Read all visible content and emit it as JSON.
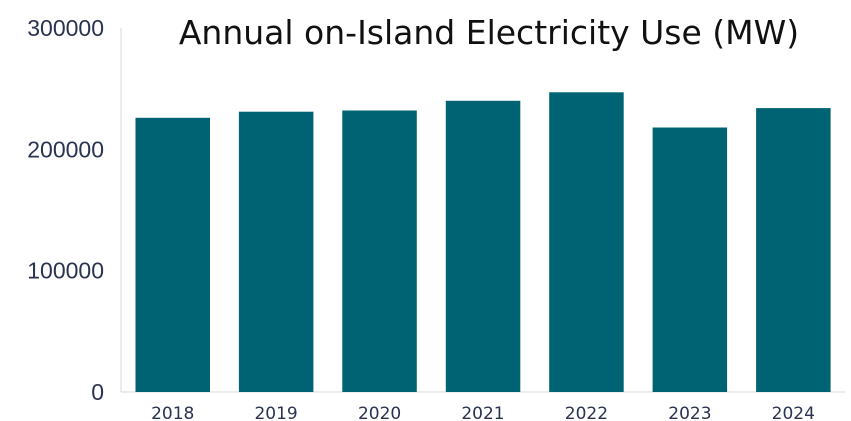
{
  "chart_data": {
    "type": "bar",
    "title": "Annual on-Island Electricity Use (MW)",
    "categories": [
      "2018",
      "2019",
      "2020",
      "2021",
      "2022",
      "2023",
      "2024"
    ],
    "values": [
      226000,
      231000,
      232000,
      240000,
      247000,
      218000,
      234000
    ],
    "ylim": [
      0,
      300000
    ],
    "yticks": [
      "0",
      "100000",
      "200000",
      "300000"
    ],
    "xlabel": "",
    "ylabel": "",
    "grid": false,
    "bar_color": "#006373"
  }
}
